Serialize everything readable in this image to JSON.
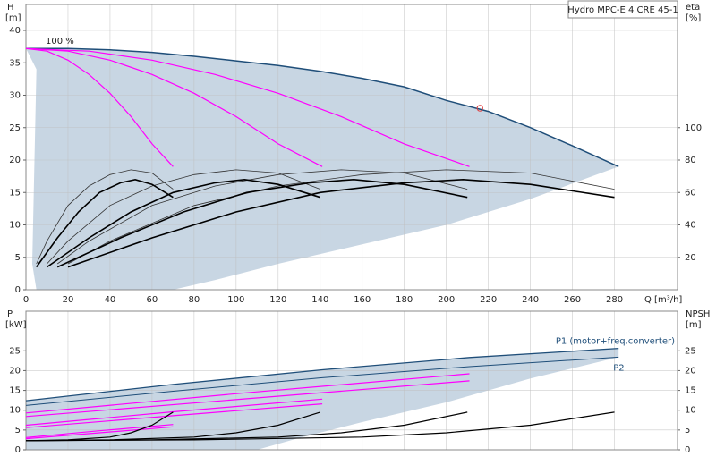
{
  "chart_data": [
    {
      "type": "line",
      "title": "Hydro MPC-E 4 CRE 45-1",
      "annotation": "100 %",
      "ylabel": "H",
      "yunit": "[m]",
      "y2label": "eta",
      "y2unit": "[%]",
      "xlabel": "Q [m³/h]",
      "xlim": [
        0,
        310
      ],
      "ylim": [
        0,
        44
      ],
      "y2lim": [
        0,
        176
      ],
      "xticks": [
        0,
        20,
        40,
        60,
        80,
        100,
        120,
        140,
        160,
        180,
        200,
        220,
        240,
        260,
        280
      ],
      "yticks": [
        0,
        5,
        10,
        15,
        20,
        25,
        30,
        35,
        40
      ],
      "y2ticks": [
        20,
        40,
        60,
        80,
        100
      ],
      "grid": true,
      "series": [
        {
          "kind": "area",
          "color": "#c8d6e3",
          "x": [
            0,
            20,
            40,
            60,
            80,
            100,
            120,
            140,
            160,
            180,
            200,
            220,
            240,
            260,
            282,
            240,
            200,
            160,
            120,
            90,
            70,
            5,
            3,
            5
          ],
          "values": [
            37.2,
            37.2,
            37.0,
            36.6,
            36.0,
            35.3,
            34.6,
            33.7,
            32.6,
            31.3,
            29.2,
            27.5,
            25.0,
            22.2,
            19.0,
            14,
            10,
            7,
            4,
            1.5,
            0,
            0,
            4,
            34
          ]
        },
        {
          "color": "#1f4e79",
          "width": 1.5,
          "x": [
            0,
            20,
            40,
            60,
            80,
            100,
            120,
            140,
            160,
            180,
            200,
            220,
            240,
            260,
            282
          ],
          "values": [
            37.2,
            37.2,
            37.0,
            36.6,
            36.0,
            35.3,
            34.6,
            33.7,
            32.6,
            31.3,
            29.2,
            27.5,
            25.0,
            22.2,
            19.0
          ]
        },
        {
          "color": "#ff00ff",
          "width": 1.2,
          "x": [
            0,
            10,
            20,
            30,
            40,
            50,
            60,
            70
          ],
          "values": [
            37.2,
            36.8,
            35.4,
            33.2,
            30.3,
            26.7,
            22.5,
            19.0
          ]
        },
        {
          "color": "#ff00ff",
          "width": 1.2,
          "x": [
            0,
            20,
            40,
            60,
            80,
            100,
            120,
            141
          ],
          "values": [
            37.2,
            36.8,
            35.4,
            33.2,
            30.3,
            26.7,
            22.5,
            19.0
          ]
        },
        {
          "color": "#ff00ff",
          "width": 1.2,
          "x": [
            0,
            30,
            60,
            90,
            120,
            150,
            180,
            211
          ],
          "values": [
            37.2,
            36.8,
            35.4,
            33.2,
            30.3,
            26.7,
            22.5,
            19.0
          ]
        },
        {
          "axis": "y2",
          "color": "#333333",
          "width": 0.8,
          "x": [
            5,
            10,
            20,
            30,
            40,
            50,
            60,
            70
          ],
          "values": [
            16,
            30,
            52,
            64,
            71,
            74,
            72,
            62
          ]
        },
        {
          "axis": "y2",
          "color": "#333333",
          "width": 0.8,
          "x": [
            10,
            20,
            40,
            60,
            80,
            100,
            120,
            140
          ],
          "values": [
            16,
            30,
            52,
            64,
            71,
            74,
            72,
            62
          ]
        },
        {
          "axis": "y2",
          "color": "#333333",
          "width": 0.8,
          "x": [
            15,
            30,
            60,
            90,
            120,
            150,
            180,
            210
          ],
          "values": [
            16,
            30,
            52,
            64,
            71,
            74,
            72,
            62
          ]
        },
        {
          "axis": "y2",
          "color": "#333333",
          "width": 0.8,
          "x": [
            20,
            40,
            80,
            120,
            160,
            200,
            240,
            280
          ],
          "values": [
            16,
            30,
            52,
            64,
            71,
            74,
            72,
            62
          ]
        },
        {
          "axis": "y2",
          "color": "#000000",
          "width": 1.6,
          "x": [
            5,
            15,
            25,
            35,
            45,
            52,
            60,
            70
          ],
          "values": [
            14,
            32,
            48,
            60,
            66,
            68,
            65,
            57
          ]
        },
        {
          "axis": "y2",
          "color": "#000000",
          "width": 1.6,
          "x": [
            10,
            30,
            50,
            70,
            90,
            104,
            120,
            140
          ],
          "values": [
            14,
            32,
            48,
            60,
            66,
            68,
            65,
            57
          ]
        },
        {
          "axis": "y2",
          "color": "#000000",
          "width": 1.6,
          "x": [
            15,
            45,
            75,
            105,
            135,
            156,
            180,
            210
          ],
          "values": [
            14,
            32,
            48,
            60,
            66,
            68,
            65,
            57
          ]
        },
        {
          "axis": "y2",
          "color": "#000000",
          "width": 1.6,
          "x": [
            20,
            60,
            100,
            140,
            180,
            208,
            240,
            280
          ],
          "values": [
            14,
            32,
            48,
            60,
            66,
            68,
            65,
            57
          ]
        },
        {
          "kind": "scatter",
          "color": "#e04040",
          "x": [
            216
          ],
          "values": [
            28
          ]
        }
      ]
    },
    {
      "type": "line",
      "ylabel": "P",
      "yunit": "[kW]",
      "y2label": "NPSH",
      "y2unit": "[m]",
      "xlim": [
        0,
        310
      ],
      "ylim": [
        0,
        35
      ],
      "y2lim": [
        0,
        35
      ],
      "yticks": [
        0,
        5,
        10,
        15,
        20,
        25
      ],
      "y2ticks": [
        0,
        5,
        10,
        15,
        20,
        25
      ],
      "grid": true,
      "series": [
        {
          "kind": "area",
          "color": "#c8d6e3",
          "x": [
            0,
            70,
            141,
            211,
            282,
            282,
            240,
            200,
            160,
            130,
            110,
            0
          ],
          "values": [
            12.4,
            16.5,
            20.2,
            23.3,
            25.6,
            23.4,
            18,
            12,
            7,
            3,
            0,
            0
          ]
        },
        {
          "name": "P1 (motor+freq.converter)",
          "color": "#1f4e79",
          "width": 1.3,
          "x": [
            0,
            70,
            141,
            211,
            282
          ],
          "values": [
            12.4,
            16.5,
            20.2,
            23.3,
            25.6
          ]
        },
        {
          "name": "P2",
          "color": "#1f4e79",
          "width": 1.0,
          "x": [
            0,
            70,
            141,
            211,
            282
          ],
          "values": [
            11.2,
            14.8,
            18.2,
            21.0,
            23.4
          ]
        },
        {
          "color": "#ff00ff",
          "width": 1.2,
          "x": [
            0,
            35,
            70
          ],
          "values": [
            3.1,
            4.8,
            6.4
          ]
        },
        {
          "color": "#ff00ff",
          "width": 1.2,
          "x": [
            0,
            35,
            70
          ],
          "values": [
            2.8,
            4.3,
            5.8
          ]
        },
        {
          "color": "#ff00ff",
          "width": 1.2,
          "x": [
            0,
            70,
            141
          ],
          "values": [
            6.2,
            9.6,
            12.8
          ]
        },
        {
          "color": "#ff00ff",
          "width": 1.2,
          "x": [
            0,
            70,
            141
          ],
          "values": [
            5.6,
            8.6,
            11.6
          ]
        },
        {
          "color": "#ff00ff",
          "width": 1.2,
          "x": [
            0,
            105,
            211
          ],
          "values": [
            9.3,
            14.4,
            19.2
          ]
        },
        {
          "color": "#ff00ff",
          "width": 1.2,
          "x": [
            0,
            105,
            211
          ],
          "values": [
            8.4,
            12.9,
            17.4
          ]
        },
        {
          "axis": "y2",
          "color": "#000000",
          "width": 1.2,
          "x": [
            0,
            20,
            40,
            50,
            60,
            70
          ],
          "values": [
            2.3,
            2.5,
            3.2,
            4.3,
            6.2,
            9.5
          ]
        },
        {
          "axis": "y2",
          "color": "#000000",
          "width": 1.2,
          "x": [
            0,
            40,
            80,
            100,
            120,
            140
          ],
          "values": [
            2.3,
            2.5,
            3.2,
            4.3,
            6.2,
            9.5
          ]
        },
        {
          "axis": "y2",
          "color": "#000000",
          "width": 1.2,
          "x": [
            0,
            60,
            120,
            150,
            180,
            210
          ],
          "values": [
            2.3,
            2.5,
            3.2,
            4.3,
            6.2,
            9.5
          ]
        },
        {
          "axis": "y2",
          "color": "#000000",
          "width": 1.2,
          "x": [
            0,
            80,
            160,
            200,
            240,
            280
          ],
          "values": [
            2.3,
            2.5,
            3.2,
            4.3,
            6.2,
            9.5
          ]
        }
      ]
    }
  ]
}
